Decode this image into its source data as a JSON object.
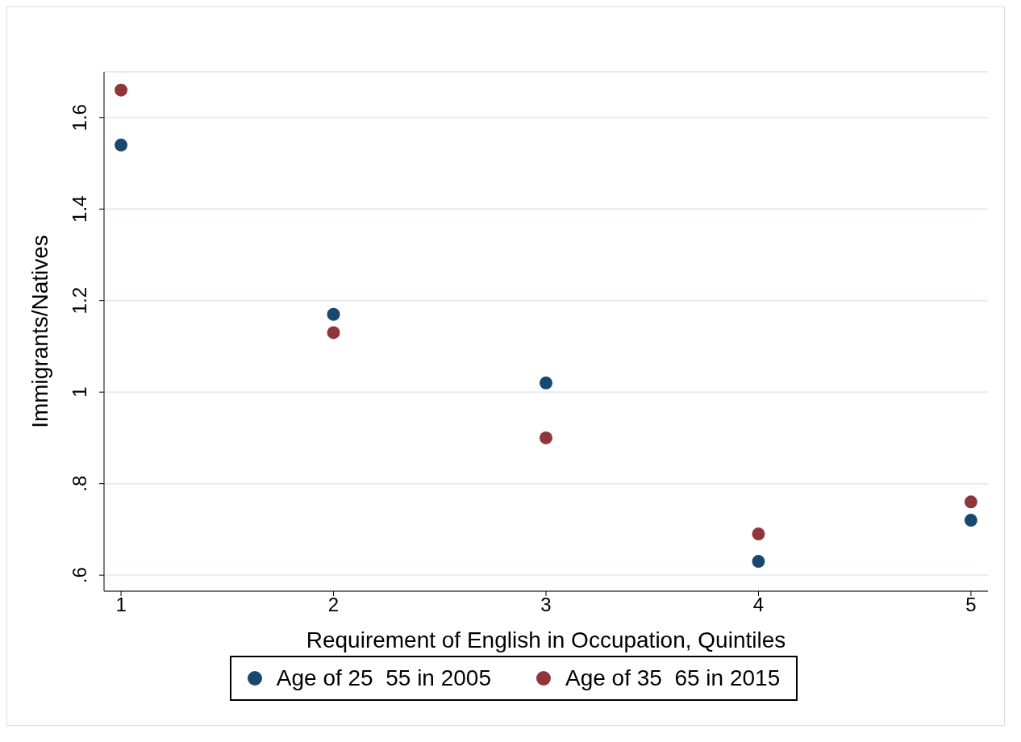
{
  "chart_data": {
    "type": "scatter",
    "xlabel": "Requirement of English in Occupation, Quintiles",
    "ylabel": "Immigrants/Natives",
    "x": [
      1,
      2,
      3,
      4,
      5
    ],
    "series": [
      {
        "name": "Age of 25  55 in 2005",
        "color": "#1a476f",
        "values": [
          1.54,
          1.17,
          1.02,
          0.63,
          0.72
        ]
      },
      {
        "name": "Age of 35  65 in 2015",
        "color": "#90353b",
        "values": [
          1.66,
          1.13,
          0.9,
          0.69,
          0.76
        ]
      }
    ],
    "xlim": [
      0.92,
      5.08
    ],
    "xticks": [
      1,
      2,
      3,
      4,
      5
    ],
    "ylim": [
      0.565,
      1.7
    ],
    "yticks": [
      {
        "value": 0.6,
        "label": ".6"
      },
      {
        "value": 0.8,
        "label": ".8"
      },
      1,
      1.2,
      1.4,
      1.6
    ],
    "grid": "y",
    "legend": "bottom",
    "marker": "circle"
  }
}
